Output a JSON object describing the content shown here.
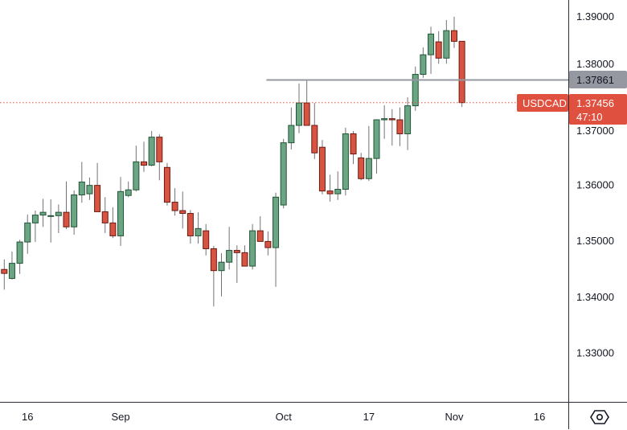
{
  "chart_data": {
    "type": "candlestick",
    "symbol": "USDCAD",
    "colors": {
      "up_fill": "#6ba583",
      "up_border": "#225437",
      "down_fill": "#d75442",
      "down_border": "#6b1a10",
      "wick": "#737375",
      "level_line": "#9598a1",
      "last_price": "#e0503e"
    },
    "ylim": [
      1.3225,
      1.3929
    ],
    "y_ticks": [
      "1.39000",
      "1.38000",
      "1.37000",
      "1.36000",
      "1.35000",
      "1.34000",
      "1.33000"
    ],
    "y_tick_values": [
      1.39,
      1.38,
      1.37,
      1.36,
      1.35,
      1.34,
      1.33
    ],
    "x_ticks": [
      {
        "label": "16",
        "index": 3
      },
      {
        "label": "Sep",
        "index": 15
      },
      {
        "label": "Oct",
        "index": 36
      },
      {
        "label": "17",
        "index": 47
      },
      {
        "label": "Nov",
        "index": 58
      },
      {
        "label": "16",
        "index": 69
      }
    ],
    "horizontal_level": {
      "value": 1.37861,
      "label": "1.37861",
      "start_index": 34
    },
    "last_price": {
      "value": 1.37456,
      "label": "1.37456",
      "symbol_label": "USDCAD",
      "countdown": "47:10"
    },
    "ohlc": [
      [
        1.3448,
        1.3466,
        1.3412,
        1.3441
      ],
      [
        1.3432,
        1.348,
        1.343,
        1.3459
      ],
      [
        1.3459,
        1.3501,
        1.344,
        1.3497
      ],
      [
        1.3497,
        1.3546,
        1.3476,
        1.3531
      ],
      [
        1.3531,
        1.3553,
        1.3497,
        1.3545
      ],
      [
        1.3545,
        1.3574,
        1.3524,
        1.355
      ],
      [
        1.3543,
        1.3573,
        1.3496,
        1.3544
      ],
      [
        1.3544,
        1.3564,
        1.3513,
        1.355
      ],
      [
        1.355,
        1.3605,
        1.352,
        1.3524
      ],
      [
        1.3524,
        1.3589,
        1.351,
        1.3581
      ],
      [
        1.3581,
        1.364,
        1.3567,
        1.3604
      ],
      [
        1.3583,
        1.3612,
        1.3572,
        1.3598
      ],
      [
        1.3598,
        1.3638,
        1.3551,
        1.3551
      ],
      [
        1.3551,
        1.3577,
        1.3513,
        1.3531
      ],
      [
        1.3531,
        1.3559,
        1.3504,
        1.3508
      ],
      [
        1.3508,
        1.3613,
        1.349,
        1.3587
      ],
      [
        1.358,
        1.3605,
        1.3577,
        1.359
      ],
      [
        1.359,
        1.3669,
        1.3587,
        1.364
      ],
      [
        1.364,
        1.3676,
        1.3622,
        1.3634
      ],
      [
        1.3634,
        1.3695,
        1.3632,
        1.3684
      ],
      [
        1.3684,
        1.3689,
        1.3607,
        1.364
      ],
      [
        1.363,
        1.3638,
        1.3562,
        1.3568
      ],
      [
        1.3568,
        1.3593,
        1.3544,
        1.3553
      ],
      [
        1.3553,
        1.3587,
        1.3521,
        1.3548
      ],
      [
        1.3548,
        1.3554,
        1.3494,
        1.3508
      ],
      [
        1.3508,
        1.355,
        1.3494,
        1.3521
      ],
      [
        1.3517,
        1.3529,
        1.3473,
        1.3485
      ],
      [
        1.3485,
        1.349,
        1.3382,
        1.3446
      ],
      [
        1.3446,
        1.3477,
        1.34,
        1.3461
      ],
      [
        1.3461,
        1.3524,
        1.3448,
        1.3482
      ],
      [
        1.3482,
        1.3491,
        1.3424,
        1.3478
      ],
      [
        1.3478,
        1.3491,
        1.3454,
        1.3454
      ],
      [
        1.3454,
        1.3529,
        1.3448,
        1.3517
      ],
      [
        1.3517,
        1.3543,
        1.3498,
        1.3498
      ],
      [
        1.3498,
        1.3516,
        1.3473,
        1.3487
      ],
      [
        1.3487,
        1.3585,
        1.3417,
        1.3577
      ],
      [
        1.3563,
        1.3681,
        1.3557,
        1.3674
      ],
      [
        1.3674,
        1.3737,
        1.3662,
        1.3705
      ],
      [
        1.3705,
        1.378,
        1.3691,
        1.3745
      ],
      [
        1.3745,
        1.3785,
        1.3705,
        1.3705
      ],
      [
        1.3705,
        1.3745,
        1.3645,
        1.3656
      ],
      [
        1.3666,
        1.3679,
        1.3582,
        1.3588
      ],
      [
        1.3588,
        1.3617,
        1.3569,
        1.3583
      ],
      [
        1.3583,
        1.3623,
        1.3572,
        1.3591
      ],
      [
        1.3591,
        1.3701,
        1.358,
        1.369
      ],
      [
        1.369,
        1.3695,
        1.3636,
        1.3654
      ],
      [
        1.3647,
        1.3656,
        1.3607,
        1.361
      ],
      [
        1.361,
        1.3704,
        1.3606,
        1.3646
      ],
      [
        1.3646,
        1.3716,
        1.3619,
        1.3715
      ],
      [
        1.3715,
        1.3741,
        1.3681,
        1.3717
      ],
      [
        1.3717,
        1.3734,
        1.3669,
        1.3715
      ],
      [
        1.3715,
        1.3737,
        1.3668,
        1.369
      ],
      [
        1.369,
        1.3755,
        1.3661,
        1.374
      ],
      [
        1.374,
        1.381,
        1.3731,
        1.3796
      ],
      [
        1.3796,
        1.3844,
        1.379,
        1.3831
      ],
      [
        1.3831,
        1.3881,
        1.3797,
        1.3868
      ],
      [
        1.3854,
        1.3873,
        1.3815,
        1.3825
      ],
      [
        1.3825,
        1.3893,
        1.3815,
        1.3874
      ],
      [
        1.3874,
        1.3899,
        1.3843,
        1.3855
      ],
      [
        1.3855,
        1.3855,
        1.3738,
        1.37456
      ]
    ]
  },
  "settings_icon": "settings-hexagon-icon"
}
